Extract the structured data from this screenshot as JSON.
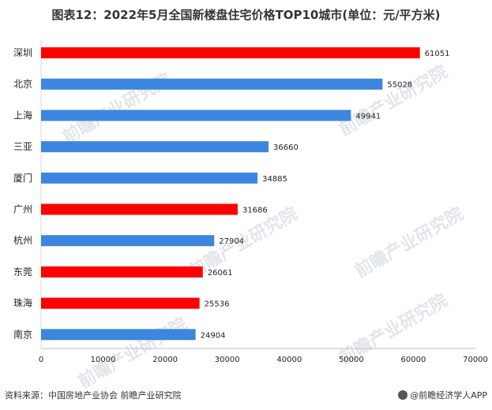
{
  "title": "图表12：2022年5月全国新楼盘住宅价格TOP10城市(单位：元/平方米)",
  "watermark": "前瞻产业研究院",
  "footer": {
    "source": "资料来源：中国房地产业协会 前瞻产业研究院",
    "brand": "@前瞻经济学人APP"
  },
  "colors": {
    "highlight": "#ff0000",
    "normal": "#3c86e0"
  },
  "chart_data": {
    "type": "bar",
    "orientation": "horizontal",
    "categories": [
      "深圳",
      "北京",
      "上海",
      "三亚",
      "厦门",
      "广州",
      "杭州",
      "东莞",
      "珠海",
      "南京"
    ],
    "values": [
      61051,
      55028,
      49941,
      36660,
      34885,
      31686,
      27904,
      26061,
      25536,
      24904
    ],
    "bar_colors": [
      "highlight",
      "normal",
      "normal",
      "normal",
      "normal",
      "highlight",
      "normal",
      "highlight",
      "highlight",
      "normal"
    ],
    "xlim": [
      0,
      70000
    ],
    "xticks": [
      0,
      10000,
      20000,
      30000,
      40000,
      50000,
      60000,
      70000
    ],
    "grid": false,
    "legend": "none"
  }
}
